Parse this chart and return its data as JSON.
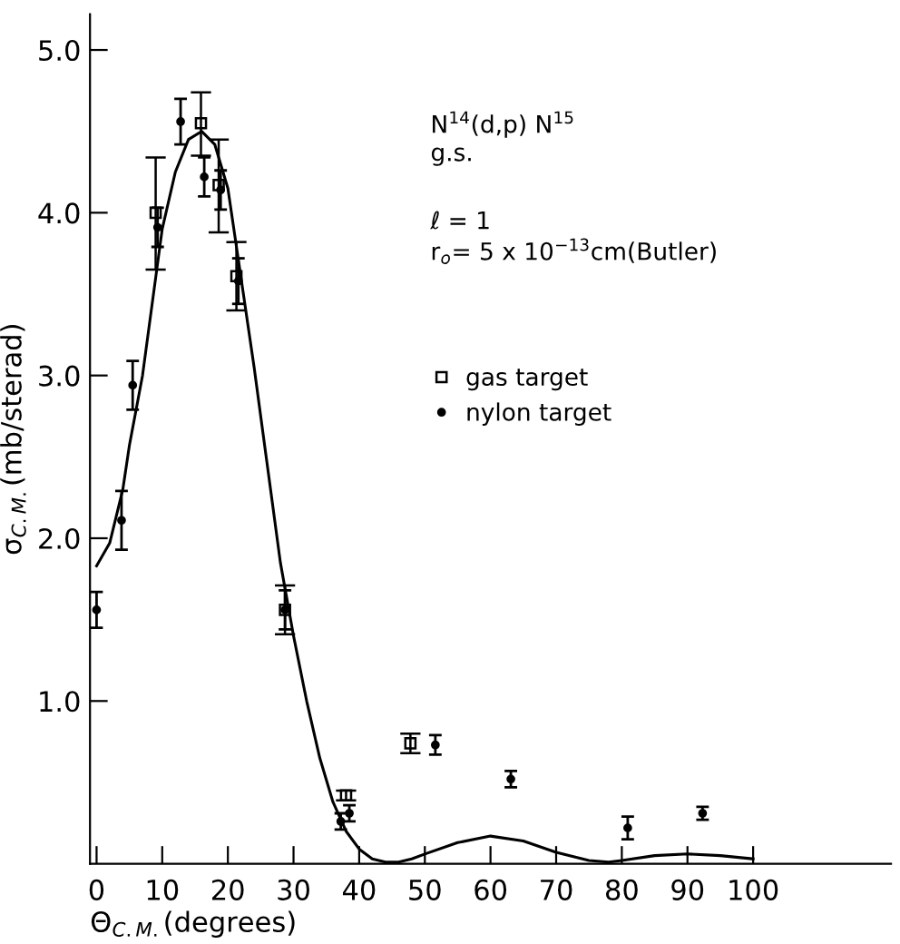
{
  "chart_data": {
    "type": "scatter",
    "xlabel": "Θ$_{C.M.}$(degrees)",
    "ylabel": "σ$_{C.M.}$(mb/sterad)",
    "xlim": [
      -1,
      121
    ],
    "ylim": [
      0,
      5.22
    ],
    "xticks": [
      0,
      10,
      20,
      30,
      40,
      50,
      60,
      70,
      80,
      90,
      100
    ],
    "yticks": [
      {
        "value": 1,
        "label": "1.0"
      },
      {
        "value": 2,
        "label": "2.0"
      },
      {
        "value": 3,
        "label": "3.0"
      },
      {
        "value": 4,
        "label": "4.0"
      },
      {
        "value": 5,
        "label": "5.0"
      }
    ],
    "grid": false,
    "legend": "center right",
    "annotations": [
      "N$^{14}$(d,p) N$^{15}$",
      "g.s.",
      "ℓ = 1",
      "r$_{o}$= 5 x 10$^{−13}$cm(Butler)"
    ],
    "series": [
      {
        "name": "gas target",
        "marker": "square",
        "color": "#000000",
        "x": [
          9.0,
          15.9,
          18.6,
          21.3,
          28.7,
          38.0,
          47.8
        ],
        "values": [
          4.0,
          4.55,
          4.17,
          3.61,
          1.56,
          0.42,
          0.74
        ],
        "errors": [
          [
            3.65,
            4.34
          ],
          [
            4.35,
            4.74
          ],
          [
            3.88,
            4.45
          ],
          [
            3.4,
            3.82
          ],
          [
            1.41,
            1.71
          ],
          [
            0.39,
            0.45
          ],
          [
            0.68,
            0.8
          ]
        ]
      },
      {
        "name": "nylon target",
        "marker": "circle",
        "color": "#000000",
        "x": [
          0.0,
          3.8,
          5.5,
          9.3,
          12.8,
          16.4,
          18.9,
          21.6,
          28.7,
          37.2,
          38.5,
          51.6,
          63.1,
          80.9,
          92.3
        ],
        "values": [
          1.56,
          2.11,
          2.94,
          3.91,
          4.56,
          4.22,
          4.14,
          3.58,
          1.56,
          0.26,
          0.31,
          0.73,
          0.52,
          0.22,
          0.31
        ],
        "errors": [
          0.11,
          0.18,
          0.15,
          0.12,
          0.14,
          0.12,
          0.12,
          0.14,
          0.12,
          0.05,
          0.05,
          0.06,
          0.05,
          0.07,
          0.04
        ]
      },
      {
        "type": "line",
        "marker": "none",
        "line_style": "solid",
        "color": "#000000",
        "x": [
          0,
          2,
          4,
          5,
          7,
          9,
          10,
          12,
          14,
          16,
          18,
          20,
          22,
          24,
          26,
          28,
          30,
          32,
          34,
          36,
          38,
          40,
          42,
          44,
          46,
          48,
          50,
          55,
          60,
          65,
          70,
          75,
          78,
          80,
          85,
          90,
          95,
          100
        ],
        "values": [
          1.83,
          1.97,
          2.3,
          2.57,
          3.0,
          3.6,
          3.9,
          4.25,
          4.45,
          4.5,
          4.42,
          4.15,
          3.6,
          3.05,
          2.45,
          1.85,
          1.4,
          1.0,
          0.65,
          0.38,
          0.2,
          0.09,
          0.03,
          0.01,
          0.01,
          0.03,
          0.06,
          0.13,
          0.17,
          0.14,
          0.07,
          0.02,
          0.01,
          0.02,
          0.05,
          0.06,
          0.05,
          0.03
        ]
      }
    ]
  }
}
